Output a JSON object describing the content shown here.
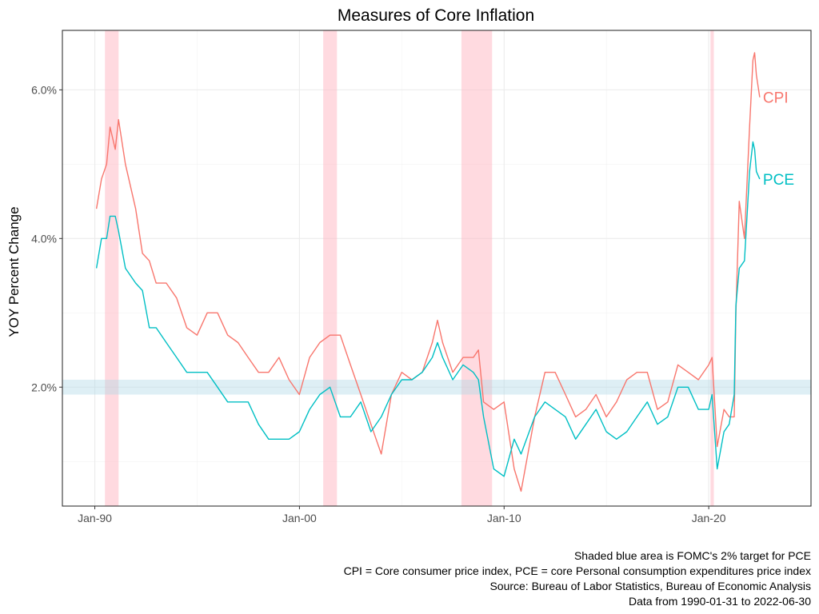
{
  "chart_data": {
    "type": "line",
    "title": "Measures of Core Inflation",
    "xlabel": "",
    "ylabel": "YOY Percent Change",
    "x_range": [
      "1988-06-01",
      "2024-12-31"
    ],
    "ylim": [
      0.4,
      6.8
    ],
    "x_ticks": [
      {
        "date": "1990-01-01",
        "label": "Jan-90"
      },
      {
        "date": "2000-01-01",
        "label": "Jan-00"
      },
      {
        "date": "2010-01-01",
        "label": "Jan-10"
      },
      {
        "date": "2020-01-01",
        "label": "Jan-20"
      }
    ],
    "y_ticks": [
      {
        "value": 2.0,
        "label": "2.0%"
      },
      {
        "value": 4.0,
        "label": "4.0%"
      },
      {
        "value": 6.0,
        "label": "6.0%"
      }
    ],
    "grid": true,
    "target_band": {
      "from": 1.9,
      "to": 2.1,
      "color": "#add8e6"
    },
    "recessions": [
      {
        "start": "1990-07-01",
        "end": "1991-03-01"
      },
      {
        "start": "2001-03-01",
        "end": "2001-11-01"
      },
      {
        "start": "2007-12-01",
        "end": "2009-06-01"
      },
      {
        "start": "2020-02-01",
        "end": "2020-04-01"
      }
    ],
    "recession_color": "#ffb6c1",
    "series": [
      {
        "name": "CPI",
        "color": "#f8766d",
        "points": [
          [
            "1990-01-31",
            4.4
          ],
          [
            "1990-04-30",
            4.8
          ],
          [
            "1990-07-31",
            5.0
          ],
          [
            "1990-09-30",
            5.5
          ],
          [
            "1990-12-31",
            5.2
          ],
          [
            "1991-02-28",
            5.6
          ],
          [
            "1991-06-30",
            5.0
          ],
          [
            "1991-12-31",
            4.4
          ],
          [
            "1992-04-30",
            3.8
          ],
          [
            "1992-08-31",
            3.7
          ],
          [
            "1992-12-31",
            3.4
          ],
          [
            "1993-06-30",
            3.4
          ],
          [
            "1993-12-31",
            3.2
          ],
          [
            "1994-06-30",
            2.8
          ],
          [
            "1994-12-31",
            2.7
          ],
          [
            "1995-06-30",
            3.0
          ],
          [
            "1995-12-31",
            3.0
          ],
          [
            "1996-06-30",
            2.7
          ],
          [
            "1996-12-31",
            2.6
          ],
          [
            "1997-06-30",
            2.4
          ],
          [
            "1997-12-31",
            2.2
          ],
          [
            "1998-06-30",
            2.2
          ],
          [
            "1998-12-31",
            2.4
          ],
          [
            "1999-06-30",
            2.1
          ],
          [
            "1999-12-31",
            1.9
          ],
          [
            "2000-06-30",
            2.4
          ],
          [
            "2000-12-31",
            2.6
          ],
          [
            "2001-06-30",
            2.7
          ],
          [
            "2001-12-31",
            2.7
          ],
          [
            "2002-06-30",
            2.3
          ],
          [
            "2002-12-31",
            1.9
          ],
          [
            "2003-06-30",
            1.5
          ],
          [
            "2003-12-31",
            1.1
          ],
          [
            "2004-06-30",
            1.9
          ],
          [
            "2004-12-31",
            2.2
          ],
          [
            "2005-06-30",
            2.1
          ],
          [
            "2005-12-31",
            2.2
          ],
          [
            "2006-06-30",
            2.6
          ],
          [
            "2006-09-30",
            2.9
          ],
          [
            "2006-12-31",
            2.6
          ],
          [
            "2007-06-30",
            2.2
          ],
          [
            "2007-12-31",
            2.4
          ],
          [
            "2008-06-30",
            2.4
          ],
          [
            "2008-09-30",
            2.5
          ],
          [
            "2008-12-31",
            1.8
          ],
          [
            "2009-06-30",
            1.7
          ],
          [
            "2009-12-31",
            1.8
          ],
          [
            "2010-06-30",
            0.9
          ],
          [
            "2010-10-31",
            0.6
          ],
          [
            "2011-06-30",
            1.6
          ],
          [
            "2011-12-31",
            2.2
          ],
          [
            "2012-06-30",
            2.2
          ],
          [
            "2012-12-31",
            1.9
          ],
          [
            "2013-06-30",
            1.6
          ],
          [
            "2013-12-31",
            1.7
          ],
          [
            "2014-06-30",
            1.9
          ],
          [
            "2014-12-31",
            1.6
          ],
          [
            "2015-06-30",
            1.8
          ],
          [
            "2015-12-31",
            2.1
          ],
          [
            "2016-06-30",
            2.2
          ],
          [
            "2016-12-31",
            2.2
          ],
          [
            "2017-06-30",
            1.7
          ],
          [
            "2017-12-31",
            1.8
          ],
          [
            "2018-06-30",
            2.3
          ],
          [
            "2018-12-31",
            2.2
          ],
          [
            "2019-06-30",
            2.1
          ],
          [
            "2019-12-31",
            2.3
          ],
          [
            "2020-02-29",
            2.4
          ],
          [
            "2020-05-31",
            1.2
          ],
          [
            "2020-09-30",
            1.7
          ],
          [
            "2020-12-31",
            1.6
          ],
          [
            "2021-03-31",
            1.6
          ],
          [
            "2021-04-30",
            3.0
          ],
          [
            "2021-06-30",
            4.5
          ],
          [
            "2021-09-30",
            4.0
          ],
          [
            "2021-12-31",
            5.5
          ],
          [
            "2022-02-28",
            6.4
          ],
          [
            "2022-03-31",
            6.5
          ],
          [
            "2022-04-30",
            6.2
          ],
          [
            "2022-06-30",
            5.9
          ]
        ]
      },
      {
        "name": "PCE",
        "color": "#00bfc4",
        "points": [
          [
            "1990-01-31",
            3.6
          ],
          [
            "1990-04-30",
            4.0
          ],
          [
            "1990-07-31",
            4.0
          ],
          [
            "1990-09-30",
            4.3
          ],
          [
            "1990-12-31",
            4.3
          ],
          [
            "1991-02-28",
            4.1
          ],
          [
            "1991-06-30",
            3.6
          ],
          [
            "1991-12-31",
            3.4
          ],
          [
            "1992-04-30",
            3.3
          ],
          [
            "1992-08-31",
            2.8
          ],
          [
            "1992-12-31",
            2.8
          ],
          [
            "1993-06-30",
            2.6
          ],
          [
            "1993-12-31",
            2.4
          ],
          [
            "1994-06-30",
            2.2
          ],
          [
            "1994-12-31",
            2.2
          ],
          [
            "1995-06-30",
            2.2
          ],
          [
            "1995-12-31",
            2.0
          ],
          [
            "1996-06-30",
            1.8
          ],
          [
            "1996-12-31",
            1.8
          ],
          [
            "1997-06-30",
            1.8
          ],
          [
            "1997-12-31",
            1.5
          ],
          [
            "1998-06-30",
            1.3
          ],
          [
            "1998-12-31",
            1.3
          ],
          [
            "1999-06-30",
            1.3
          ],
          [
            "1999-12-31",
            1.4
          ],
          [
            "2000-06-30",
            1.7
          ],
          [
            "2000-12-31",
            1.9
          ],
          [
            "2001-06-30",
            2.0
          ],
          [
            "2001-12-31",
            1.6
          ],
          [
            "2002-06-30",
            1.6
          ],
          [
            "2002-12-31",
            1.8
          ],
          [
            "2003-06-30",
            1.4
          ],
          [
            "2003-12-31",
            1.6
          ],
          [
            "2004-06-30",
            1.9
          ],
          [
            "2004-12-31",
            2.1
          ],
          [
            "2005-06-30",
            2.1
          ],
          [
            "2005-12-31",
            2.2
          ],
          [
            "2006-06-30",
            2.4
          ],
          [
            "2006-09-30",
            2.6
          ],
          [
            "2006-12-31",
            2.4
          ],
          [
            "2007-06-30",
            2.1
          ],
          [
            "2007-12-31",
            2.3
          ],
          [
            "2008-06-30",
            2.2
          ],
          [
            "2008-09-30",
            2.1
          ],
          [
            "2008-12-31",
            1.6
          ],
          [
            "2009-06-30",
            0.9
          ],
          [
            "2009-12-31",
            0.8
          ],
          [
            "2010-06-30",
            1.3
          ],
          [
            "2010-10-31",
            1.1
          ],
          [
            "2011-06-30",
            1.6
          ],
          [
            "2011-12-31",
            1.8
          ],
          [
            "2012-06-30",
            1.7
          ],
          [
            "2012-12-31",
            1.6
          ],
          [
            "2013-06-30",
            1.3
          ],
          [
            "2013-12-31",
            1.5
          ],
          [
            "2014-06-30",
            1.7
          ],
          [
            "2014-12-31",
            1.4
          ],
          [
            "2015-06-30",
            1.3
          ],
          [
            "2015-12-31",
            1.4
          ],
          [
            "2016-06-30",
            1.6
          ],
          [
            "2016-12-31",
            1.8
          ],
          [
            "2017-06-30",
            1.5
          ],
          [
            "2017-12-31",
            1.6
          ],
          [
            "2018-06-30",
            2.0
          ],
          [
            "2018-12-31",
            2.0
          ],
          [
            "2019-06-30",
            1.7
          ],
          [
            "2019-12-31",
            1.7
          ],
          [
            "2020-02-29",
            1.9
          ],
          [
            "2020-05-31",
            0.9
          ],
          [
            "2020-09-30",
            1.4
          ],
          [
            "2020-12-31",
            1.5
          ],
          [
            "2021-03-31",
            1.9
          ],
          [
            "2021-04-30",
            3.1
          ],
          [
            "2021-06-30",
            3.6
          ],
          [
            "2021-09-30",
            3.7
          ],
          [
            "2021-12-31",
            4.9
          ],
          [
            "2022-02-28",
            5.3
          ],
          [
            "2022-03-31",
            5.2
          ],
          [
            "2022-04-30",
            4.9
          ],
          [
            "2022-06-30",
            4.8
          ]
        ]
      }
    ]
  },
  "caption": [
    "Shaded blue area is FOMC's 2% target for PCE",
    "CPI = Core consumer price index, PCE = core Personal consumption expenditures price index",
    "Source: Bureau of Labor Statistics, Bureau of Economic Analysis",
    "Data from 1990-01-31 to 2022-06-30"
  ]
}
